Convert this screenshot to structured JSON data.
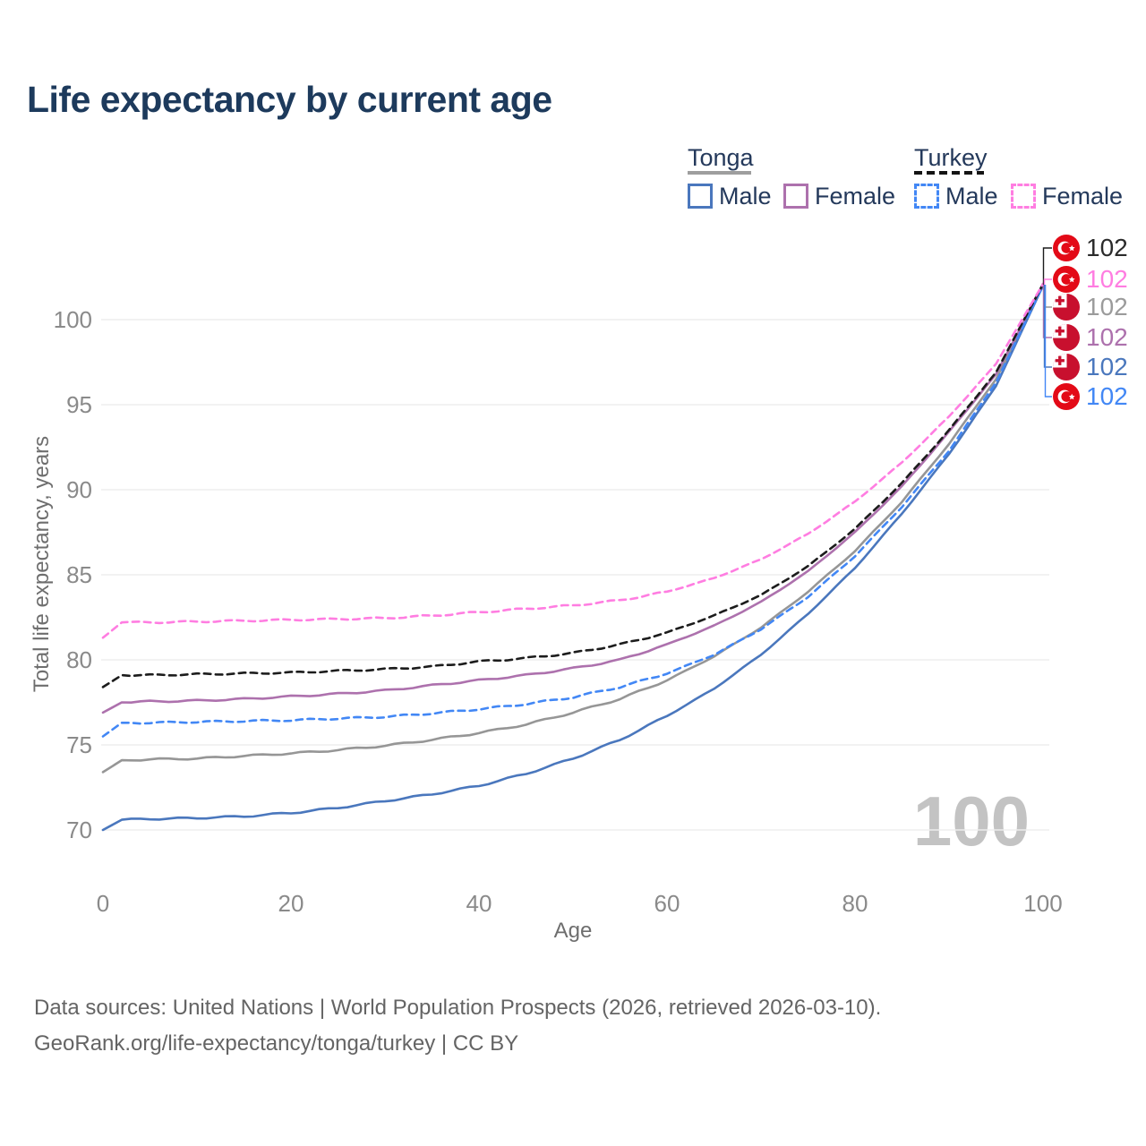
{
  "title": "Life expectancy by current age",
  "watermark": "100",
  "legend": {
    "groups": [
      {
        "label": "Tonga",
        "line_style": "solid",
        "line_color": "#9e9e9e",
        "items": [
          {
            "label": "Male",
            "series": "tonga-male",
            "color": "#4a77bd",
            "style": "solid"
          },
          {
            "label": "Female",
            "series": "tonga-female",
            "color": "#ad71ad",
            "style": "solid"
          }
        ]
      },
      {
        "label": "Turkey",
        "line_style": "dashed",
        "line_color": "#141414",
        "items": [
          {
            "label": "Male",
            "series": "turkey-male",
            "color": "#4287f5",
            "style": "dashed"
          },
          {
            "label": "Female",
            "series": "turkey-female",
            "color": "#ff7de1",
            "style": "dashed"
          }
        ]
      }
    ]
  },
  "chart_data": {
    "type": "line",
    "xlabel": "Age",
    "ylabel": "Total life expectancy, years",
    "xticks": [
      0,
      20,
      40,
      60,
      80,
      100
    ],
    "yticks": [
      70,
      75,
      80,
      85,
      90,
      95,
      100
    ],
    "xlim": [
      0,
      100
    ],
    "ylim": [
      68.5,
      103.5
    ],
    "grid": "horizontal",
    "legend_position": "top-right",
    "x": [
      0,
      2,
      5,
      10,
      15,
      20,
      25,
      30,
      35,
      40,
      45,
      50,
      55,
      60,
      65,
      70,
      75,
      80,
      85,
      90,
      95,
      100
    ],
    "series": [
      {
        "id": "tonga-total",
        "name": "Tonga",
        "country": "Tonga",
        "sex": "Total",
        "style": "solid",
        "color": "#969696",
        "values": [
          73.4,
          74.1,
          74.15,
          74.2,
          74.35,
          74.5,
          74.7,
          74.95,
          75.3,
          75.7,
          76.2,
          76.9,
          77.7,
          78.8,
          80.2,
          81.9,
          84.0,
          86.4,
          89.3,
          92.7,
          96.5,
          102.0
        ]
      },
      {
        "id": "tonga-female",
        "name": "Tonga Female",
        "country": "Tonga",
        "sex": "Female",
        "style": "solid",
        "color": "#ad71ad",
        "values": [
          76.9,
          77.5,
          77.55,
          77.6,
          77.7,
          77.85,
          78.0,
          78.2,
          78.5,
          78.8,
          79.1,
          79.5,
          80.0,
          80.9,
          82.0,
          83.4,
          85.2,
          87.5,
          90.2,
          93.4,
          96.8,
          102.0
        ]
      },
      {
        "id": "tonga-male",
        "name": "Tonga Male",
        "country": "Tonga",
        "sex": "Male",
        "style": "solid",
        "color": "#4a77bd",
        "values": [
          70.0,
          70.6,
          70.65,
          70.7,
          70.8,
          71.0,
          71.3,
          71.7,
          72.1,
          72.6,
          73.3,
          74.2,
          75.3,
          76.7,
          78.3,
          80.3,
          82.7,
          85.4,
          88.6,
          92.1,
          96.1,
          102.0
        ]
      },
      {
        "id": "turkey-male",
        "name": "Turkey Male",
        "country": "Turkey",
        "sex": "Male",
        "style": "dashed",
        "color": "#4287f5",
        "values": [
          75.5,
          76.3,
          76.3,
          76.35,
          76.4,
          76.45,
          76.55,
          76.65,
          76.85,
          77.1,
          77.4,
          77.8,
          78.4,
          79.2,
          80.3,
          81.8,
          83.7,
          86.1,
          89.0,
          92.3,
          96.3,
          102.0
        ]
      },
      {
        "id": "turkey-total",
        "name": "Turkey",
        "country": "Turkey",
        "sex": "Total",
        "style": "dashed",
        "color": "#1c1c1c",
        "values": [
          78.4,
          79.1,
          79.1,
          79.15,
          79.2,
          79.25,
          79.35,
          79.45,
          79.6,
          79.9,
          80.1,
          80.4,
          80.9,
          81.6,
          82.6,
          83.8,
          85.5,
          87.7,
          90.4,
          93.5,
          96.9,
          102.1
        ]
      },
      {
        "id": "turkey-female",
        "name": "Turkey Female",
        "country": "Turkey",
        "sex": "Female",
        "style": "dashed",
        "color": "#ff7de1",
        "values": [
          81.3,
          82.2,
          82.2,
          82.25,
          82.3,
          82.35,
          82.4,
          82.45,
          82.6,
          82.8,
          83.0,
          83.2,
          83.5,
          84.0,
          84.8,
          85.9,
          87.4,
          89.3,
          91.6,
          94.3,
          97.4,
          102.1
        ]
      }
    ]
  },
  "end_labels": [
    {
      "series": "turkey-total",
      "flag": "turkey",
      "value": "102",
      "color": "#2b2b2b"
    },
    {
      "series": "turkey-female",
      "flag": "turkey",
      "value": "102",
      "color": "#ff7de1"
    },
    {
      "series": "tonga-total",
      "flag": "tonga",
      "value": "102",
      "color": "#9b9b9b"
    },
    {
      "series": "tonga-female",
      "flag": "tonga",
      "value": "102",
      "color": "#ad71ad"
    },
    {
      "series": "tonga-male",
      "flag": "tonga",
      "value": "102",
      "color": "#4a77bd"
    },
    {
      "series": "turkey-male",
      "flag": "turkey",
      "value": "102",
      "color": "#4287f5"
    }
  ],
  "flag_colors": {
    "turkey_red": "#e30a17",
    "tonga_red": "#c8102e",
    "white": "#ffffff"
  },
  "colors": {
    "title": "#1d3a5c",
    "legend_text": "#24395b",
    "tick": "#8a8a8a",
    "axis_label": "#6e6e6e",
    "footer": "#646464",
    "grid": "#ededed",
    "watermark": "#c3c3c3"
  },
  "footer": {
    "line1": "Data sources: United Nations | World Population Prospects (2026, retrieved 2026-03-10).",
    "line2": "GeoRank.org/life-expectancy/tonga/turkey | CC BY"
  }
}
